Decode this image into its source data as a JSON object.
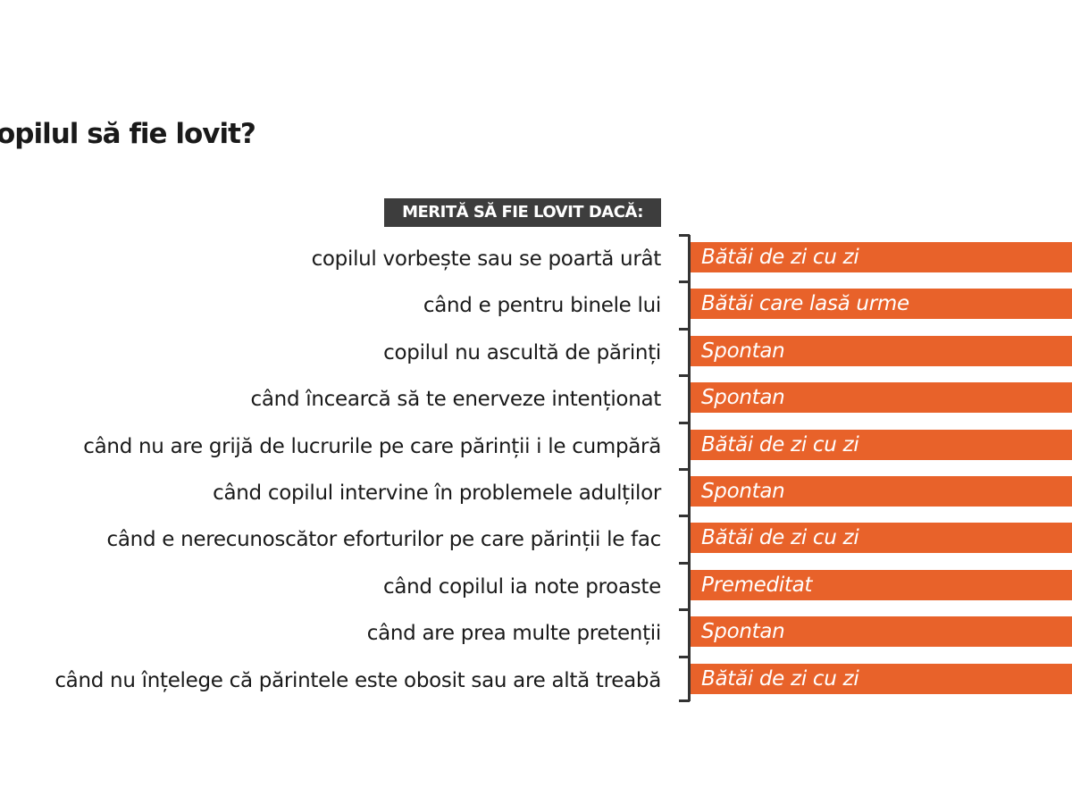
{
  "chart_data": {
    "type": "table",
    "title": "opilul să fie lovit?",
    "header": "MERITĂ SĂ FIE LOVIT DACĂ:",
    "bar_color": "#e8622a",
    "rows": [
      {
        "reason": "copilul vorbește sau se poartă urât",
        "category": "Bătăi de zi cu zi"
      },
      {
        "reason": "când e pentru binele lui",
        "category": "Bătăi care lasă urme"
      },
      {
        "reason": "copilul nu ascultă de părinți",
        "category": "Spontan"
      },
      {
        "reason": "când încearcă să te enerveze intenționat",
        "category": "Spontan"
      },
      {
        "reason": "când nu are grijă de lucrurile pe care părinții i le cumpără",
        "category": "Bătăi de zi cu zi"
      },
      {
        "reason": "când copilul intervine în problemele adulților",
        "category": "Spontan"
      },
      {
        "reason": "când e nerecunoscător eforturilor pe care părinții le fac",
        "category": "Bătăi de zi cu zi"
      },
      {
        "reason": "când copilul ia note proaste",
        "category": "Premeditat"
      },
      {
        "reason": "când are prea multe pretenții",
        "category": "Spontan"
      },
      {
        "reason": "când nu înțelege că părintele este obosit sau are altă treabă",
        "category": "Bătăi de zi cu zi"
      }
    ]
  }
}
